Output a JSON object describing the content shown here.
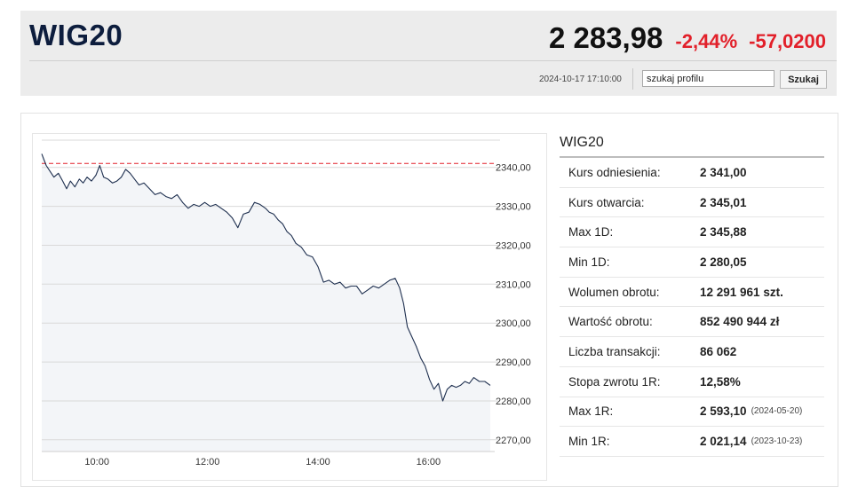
{
  "header": {
    "ticker": "WIG20",
    "price": "2 283,98",
    "change_pct": "-2,44%",
    "change_abs": "-57,0200",
    "timestamp": "2024-10-17 17:10:00",
    "search_value": "szukaj profilu",
    "search_button": "Szukaj",
    "colors": {
      "negative": "#e2202a",
      "ticker": "#0d1d3d"
    }
  },
  "stats": {
    "title": "WIG20",
    "rows": [
      {
        "label": "Kurs odniesienia:",
        "value": "2 341,00",
        "date": ""
      },
      {
        "label": "Kurs otwarcia:",
        "value": "2 345,01",
        "date": ""
      },
      {
        "label": "Max 1D:",
        "value": "2 345,88",
        "date": ""
      },
      {
        "label": "Min 1D:",
        "value": "2 280,05",
        "date": ""
      },
      {
        "label": "Wolumen obrotu:",
        "value": "12 291 961 szt.",
        "date": ""
      },
      {
        "label": "Wartość obrotu:",
        "value": "852 490 944 zł",
        "date": ""
      },
      {
        "label": "Liczba transakcji:",
        "value": "86 062",
        "date": ""
      },
      {
        "label": "Stopa zwrotu 1R:",
        "value": "12,58%",
        "date": ""
      },
      {
        "label": "Max 1R:",
        "value": "2 593,10",
        "date": "(2024-05-20)"
      },
      {
        "label": "Min 1R:",
        "value": "2 021,14",
        "date": "(2023-10-23)"
      }
    ]
  },
  "chart_data": {
    "type": "area",
    "title": "",
    "xlabel": "",
    "ylabel": "",
    "xlim": [
      9.0,
      17.2
    ],
    "ylim": [
      2267,
      2347
    ],
    "x_ticks": [
      10,
      12,
      14,
      16
    ],
    "x_tick_labels": [
      "10:00",
      "12:00",
      "14:00",
      "16:00"
    ],
    "y_ticks": [
      2340,
      2330,
      2320,
      2310,
      2300,
      2290,
      2280,
      2270
    ],
    "y_tick_labels": [
      "2340,00",
      "2330,00",
      "2320,00",
      "2310,00",
      "2300,00",
      "2290,00",
      "2280,00",
      "2270,00"
    ],
    "grid": "horizontal",
    "reference_line": {
      "value": 2341.0,
      "color": "#e2202a",
      "style": "dashed"
    },
    "line_color": "#1e2f4f",
    "fill_color": "#f3f5f8",
    "series": [
      {
        "x": [
          9.0,
          9.08,
          9.15,
          9.22,
          9.3,
          9.38,
          9.45,
          9.52,
          9.6,
          9.68,
          9.75,
          9.82,
          9.9,
          9.98,
          10.05,
          10.12,
          10.2,
          10.28,
          10.36,
          10.44,
          10.52,
          10.6,
          10.68,
          10.76,
          10.85,
          10.95,
          11.05,
          11.15,
          11.25,
          11.35,
          11.45,
          11.55,
          11.65,
          11.75,
          11.85,
          11.95,
          12.05,
          12.15,
          12.25,
          12.35,
          12.45,
          12.55,
          12.65,
          12.75,
          12.85,
          12.95,
          13.05,
          13.12,
          13.2,
          13.28,
          13.36,
          13.44,
          13.52,
          13.6,
          13.7,
          13.8,
          13.9,
          14.0,
          14.1,
          14.2,
          14.3,
          14.4,
          14.5,
          14.6,
          14.7,
          14.8,
          14.9,
          15.0,
          15.1,
          15.2,
          15.3,
          15.4,
          15.48,
          15.55,
          15.62,
          15.7,
          15.78,
          15.86,
          15.94,
          16.02,
          16.1,
          16.18,
          16.26,
          16.34,
          16.42,
          16.5,
          16.58,
          16.66,
          16.74,
          16.82,
          16.92,
          17.02,
          17.12
        ],
        "y": [
          2343.5,
          2340.5,
          2339.0,
          2337.5,
          2338.5,
          2336.5,
          2334.5,
          2336.5,
          2335.0,
          2337.0,
          2336.0,
          2337.5,
          2336.5,
          2338.0,
          2340.5,
          2337.5,
          2337.0,
          2336.0,
          2336.5,
          2337.5,
          2339.5,
          2338.5,
          2337.0,
          2335.5,
          2336.0,
          2334.5,
          2333.0,
          2333.5,
          2332.5,
          2332.0,
          2333.0,
          2331.0,
          2329.5,
          2330.5,
          2330.0,
          2331.0,
          2330.0,
          2330.5,
          2329.5,
          2328.5,
          2327.0,
          2324.5,
          2328.0,
          2328.5,
          2331.0,
          2330.5,
          2329.5,
          2328.5,
          2328.0,
          2326.5,
          2325.5,
          2323.5,
          2322.5,
          2320.5,
          2319.5,
          2317.5,
          2317.0,
          2314.5,
          2310.5,
          2311.0,
          2310.0,
          2310.5,
          2309.0,
          2309.5,
          2309.5,
          2307.5,
          2308.5,
          2309.5,
          2309.0,
          2310.0,
          2311.0,
          2311.5,
          2309.0,
          2305.0,
          2299.0,
          2296.5,
          2294.0,
          2291.0,
          2289.0,
          2285.5,
          2283.0,
          2284.5,
          2280.0,
          2283.0,
          2284.0,
          2283.5,
          2284.0,
          2285.0,
          2284.5,
          2286.0,
          2285.0,
          2285.0,
          2284.0
        ]
      }
    ]
  }
}
